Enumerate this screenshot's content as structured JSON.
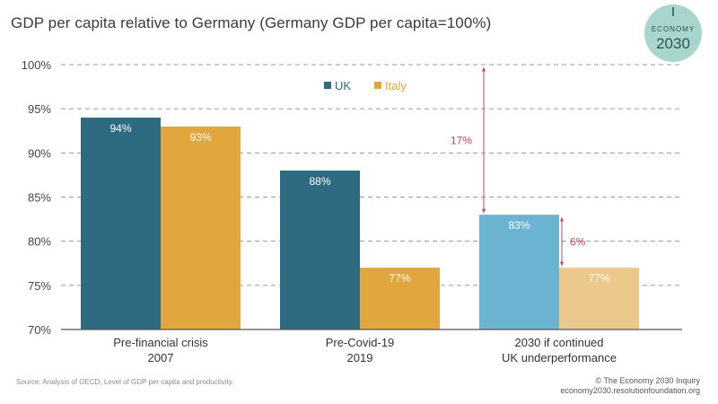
{
  "title": "GDP per capita relative to Germany (Germany GDP per capita=100%)",
  "logo": {
    "line1": "ECONOMY",
    "line2": "2030",
    "color": "#a8d5cc"
  },
  "source": "Source: Analysis of OECD, Level of GDP per capita and productivity.",
  "credit": {
    "line1": "© The Economy 2030 Inquiry",
    "line2": "economy2030.resolutionfoundation.org"
  },
  "chart_data": {
    "type": "bar",
    "title": "GDP per capita relative to Germany (Germany GDP per capita=100%)",
    "categories": [
      [
        "Pre-financial crisis",
        "2007"
      ],
      [
        "Pre-Covid-19",
        "2019"
      ],
      [
        "2030 if continued",
        "UK underperformance"
      ]
    ],
    "series": [
      {
        "name": "UK",
        "values": [
          94,
          88,
          83
        ],
        "labels": [
          "94%",
          "88%",
          "83%"
        ],
        "colors": [
          "#2e6b80",
          "#2e6b80",
          "#6ab4d1"
        ]
      },
      {
        "name": "Italy",
        "values": [
          93,
          77,
          77
        ],
        "labels": [
          "93%",
          "77%",
          "77%"
        ],
        "colors": [
          "#e1a63e",
          "#e1a63e",
          "#ecc98b"
        ]
      }
    ],
    "legend": {
      "position": "top-center",
      "colors": [
        "#2e6b80",
        "#e1a63e"
      ]
    },
    "ylim": [
      70,
      100
    ],
    "yticks": [
      70,
      75,
      80,
      85,
      90,
      95,
      100
    ],
    "ytick_labels": [
      "70%",
      "75%",
      "80%",
      "85%",
      "90%",
      "95%",
      "100%"
    ],
    "grid": true,
    "annotations": [
      {
        "label": "17%",
        "from": 100,
        "to": 83,
        "category": 2,
        "color": "#c9445a"
      },
      {
        "label": "6%",
        "from": 83,
        "to": 77,
        "category": 2,
        "color": "#c9445a"
      }
    ]
  }
}
